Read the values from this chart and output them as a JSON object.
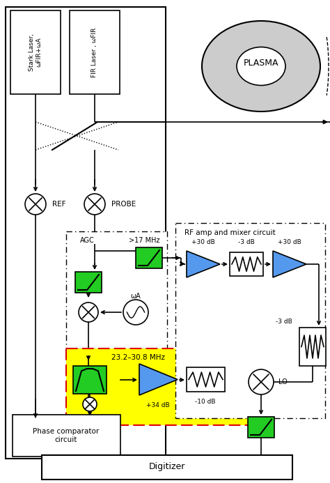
{
  "bg_color": "#ffffff",
  "fig_width": 4.74,
  "fig_height": 6.93,
  "dpi": 100,
  "colors": {
    "green_box": "#22cc22",
    "blue_tri": "#5599ee",
    "yellow_bg": "#ffff00",
    "red_dashed": "#dd0000",
    "plasma_gray": "#cccccc",
    "plasma_inner": "#dddddd"
  },
  "labels": {
    "stark_laser": "Stark Laser,\nωFIR+ωA",
    "fir_laser": "FIR Laser , ωFIR",
    "ref": "REF",
    "probe": "PROBE",
    "agc": "AGC",
    "gt17mhz": ">17 MHz",
    "omega_a": "ωA",
    "freq_range": "23.2–30.8 MHz",
    "phase_comp": "Phase comparator\ncircuit",
    "digitizer": "Digitizer",
    "rf_title": "RF amp and mixer circuit",
    "p30db_1": "+30 dB",
    "m3db_1": "-3 dB",
    "p30db_2": "+30 dB",
    "m3db_2": "-3 dB",
    "p34db": "+34 dB",
    "m10db": "-10 dB",
    "lo": "LO",
    "plasma": "PLASMA"
  }
}
